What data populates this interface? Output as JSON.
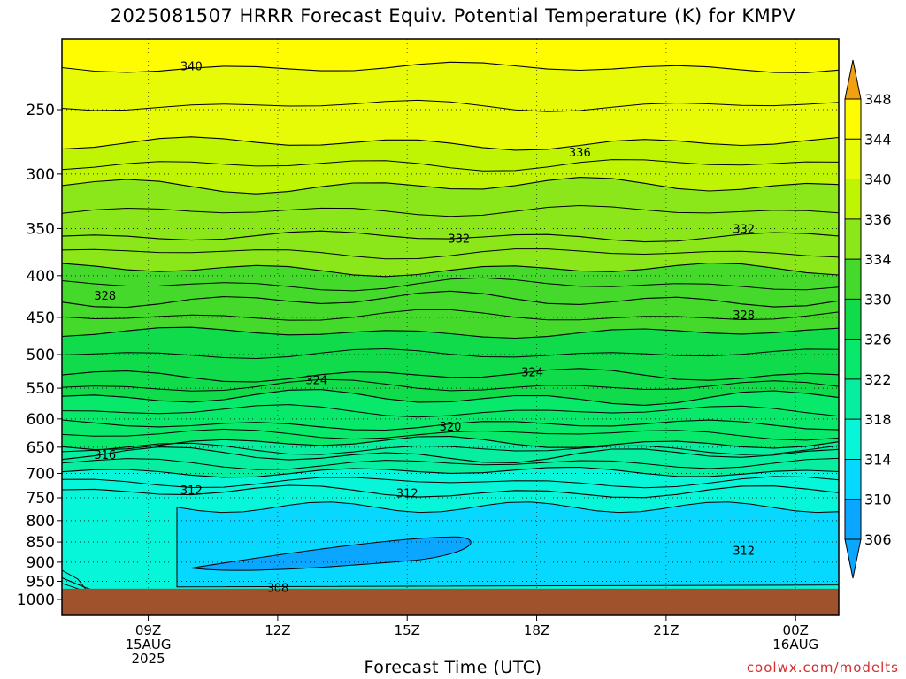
{
  "chart_data": {
    "type": "heatmap",
    "title": "2025081507 HRRR Forecast Equiv. Potential Temperature (K) for KMPV",
    "xlabel": "Forecast Time (UTC)",
    "ylabel": "",
    "y_scale": "log",
    "ylim": [
      1000,
      200
    ],
    "x_range_hours": [
      7,
      25
    ],
    "x_ticks": [
      {
        "hour": 9,
        "lines": [
          "09Z",
          "15AUG",
          "2025"
        ]
      },
      {
        "hour": 12,
        "lines": [
          "12Z"
        ]
      },
      {
        "hour": 15,
        "lines": [
          "15Z"
        ]
      },
      {
        "hour": 18,
        "lines": [
          "18Z"
        ]
      },
      {
        "hour": 21,
        "lines": [
          "21Z"
        ]
      },
      {
        "hour": 24,
        "lines": [
          "00Z",
          "16AUG"
        ]
      }
    ],
    "y_ticks": [
      250,
      300,
      350,
      400,
      450,
      500,
      550,
      600,
      650,
      700,
      750,
      800,
      850,
      900,
      950,
      1000
    ],
    "grid": true,
    "surface_pressure": 970,
    "colorbar": {
      "levels": [
        306,
        310,
        314,
        318,
        322,
        326,
        330,
        334,
        336,
        340,
        344,
        348
      ],
      "colors": [
        "#0aa6ff",
        "#07d8ff",
        "#07f5d8",
        "#07eea0",
        "#08e86a",
        "#10db4a",
        "#45d92c",
        "#8be61a",
        "#bff503",
        "#e6fb05",
        "#fffb00",
        "#ffc905",
        "#f0a010"
      ]
    },
    "contour_labels": [
      {
        "value": "340",
        "hour": 10.0,
        "pressure": 221
      },
      {
        "value": "336",
        "hour": 19.0,
        "pressure": 282
      },
      {
        "value": "332",
        "hour": 16.2,
        "pressure": 360
      },
      {
        "value": "332",
        "hour": 22.8,
        "pressure": 350
      },
      {
        "value": "328",
        "hour": 8.0,
        "pressure": 423
      },
      {
        "value": "328",
        "hour": 22.8,
        "pressure": 447
      },
      {
        "value": "324",
        "hour": 12.9,
        "pressure": 537
      },
      {
        "value": "324",
        "hour": 17.9,
        "pressure": 525
      },
      {
        "value": "320",
        "hour": 16.0,
        "pressure": 612
      },
      {
        "value": "316",
        "hour": 8.0,
        "pressure": 663
      },
      {
        "value": "312",
        "hour": 10.0,
        "pressure": 733
      },
      {
        "value": "312",
        "hour": 15.0,
        "pressure": 740
      },
      {
        "value": "312",
        "hour": 22.8,
        "pressure": 870
      },
      {
        "value": "308",
        "hour": 12.0,
        "pressure": 967
      }
    ],
    "upper_isentropes": [
      {
        "level": 340,
        "pressure": 222
      },
      {
        "level": 336,
        "pressure": 275
      },
      {
        "level": 334,
        "pressure": 310
      },
      {
        "level": 332,
        "pressure": 358
      },
      {
        "level": 330,
        "pressure": 393
      },
      {
        "level": 328,
        "pressure": 428
      },
      {
        "level": 326,
        "pressure": 470
      },
      {
        "level": 324,
        "pressure": 530
      },
      {
        "level": 322,
        "pressure": 565
      },
      {
        "level": 320,
        "pressure": 610
      },
      {
        "level": 318,
        "pressure": 642
      },
      {
        "level": 316,
        "pressure": 665
      },
      {
        "level": 314,
        "pressure": 697
      },
      {
        "level": 312,
        "pressure": 738
      }
    ]
  },
  "credit": "coolwx.com/modelts"
}
